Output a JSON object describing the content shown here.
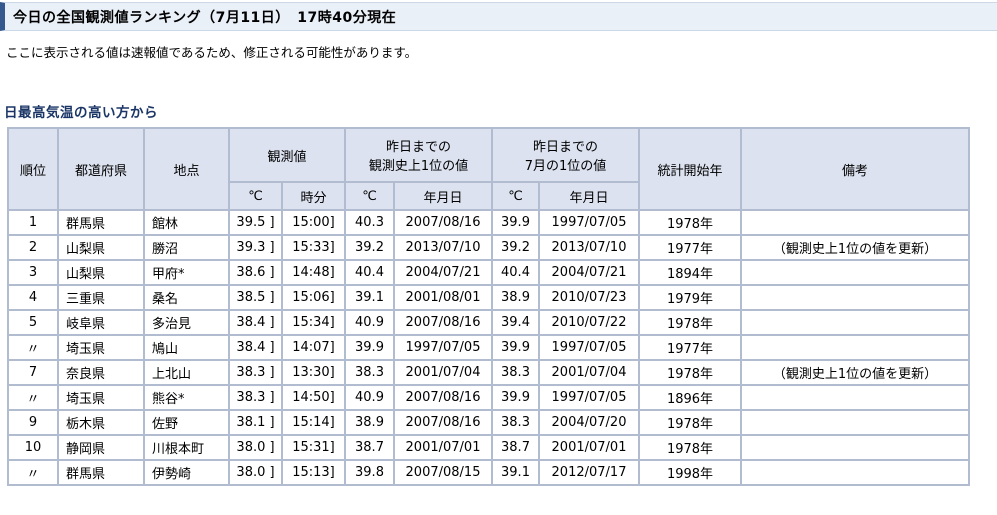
{
  "title_bar": {
    "text": "今日の全国観測値ランキング（7月11日）　17時40分現在"
  },
  "notice": "ここに表示される値は速報値であるため、修正される可能性があります。",
  "section": {
    "heading": "日最高気温の高い方から"
  },
  "colors": {
    "title_accent": "#35588e",
    "title_bg": "#eaf0f8",
    "heading_text": "#1b3666",
    "header_cell_bg": "#dce2ef",
    "inner_border": "#b2bcd0",
    "outer_border": "#8b97ad"
  },
  "table": {
    "headers": {
      "rank": "順位",
      "prefecture": "都道府県",
      "station": "地点",
      "observed": "観測値",
      "record_all_line1": "昨日までの",
      "record_all_line2": "観測史上1位の値",
      "record_july_line1": "昨日までの",
      "record_july_line2": "7月の1位の値",
      "stats_start": "統計開始年",
      "remarks": "備考",
      "temp_unit": "℃",
      "time": "時分",
      "date": "年月日"
    },
    "rows": [
      {
        "rank": "1",
        "pref": "群馬県",
        "station": "館林",
        "temp": "39.5 ]",
        "time": "15:00]",
        "rec_temp": "40.3",
        "rec_date": "2007/08/16",
        "jul_temp": "39.9",
        "jul_date": "1997/07/05",
        "since": "1978年",
        "remarks": ""
      },
      {
        "rank": "2",
        "pref": "山梨県",
        "station": "勝沼",
        "temp": "39.3 ]",
        "time": "15:33]",
        "rec_temp": "39.2",
        "rec_date": "2013/07/10",
        "jul_temp": "39.2",
        "jul_date": "2013/07/10",
        "since": "1977年",
        "remarks": "（観測史上1位の値を更新）"
      },
      {
        "rank": "3",
        "pref": "山梨県",
        "station": "甲府*",
        "temp": "38.6 ]",
        "time": "14:48]",
        "rec_temp": "40.4",
        "rec_date": "2004/07/21",
        "jul_temp": "40.4",
        "jul_date": "2004/07/21",
        "since": "1894年",
        "remarks": ""
      },
      {
        "rank": "4",
        "pref": "三重県",
        "station": "桑名",
        "temp": "38.5 ]",
        "time": "15:06]",
        "rec_temp": "39.1",
        "rec_date": "2001/08/01",
        "jul_temp": "38.9",
        "jul_date": "2010/07/23",
        "since": "1979年",
        "remarks": ""
      },
      {
        "rank": "5",
        "pref": "岐阜県",
        "station": "多治見",
        "temp": "38.4 ]",
        "time": "15:34]",
        "rec_temp": "40.9",
        "rec_date": "2007/08/16",
        "jul_temp": "39.4",
        "jul_date": "2010/07/22",
        "since": "1978年",
        "remarks": ""
      },
      {
        "rank": "〃",
        "pref": "埼玉県",
        "station": "鳩山",
        "temp": "38.4 ]",
        "time": "14:07]",
        "rec_temp": "39.9",
        "rec_date": "1997/07/05",
        "jul_temp": "39.9",
        "jul_date": "1997/07/05",
        "since": "1977年",
        "remarks": ""
      },
      {
        "rank": "7",
        "pref": "奈良県",
        "station": "上北山",
        "temp": "38.3 ]",
        "time": "13:30]",
        "rec_temp": "38.3",
        "rec_date": "2001/07/04",
        "jul_temp": "38.3",
        "jul_date": "2001/07/04",
        "since": "1978年",
        "remarks": "（観測史上1位の値を更新）"
      },
      {
        "rank": "〃",
        "pref": "埼玉県",
        "station": "熊谷*",
        "temp": "38.3 ]",
        "time": "14:50]",
        "rec_temp": "40.9",
        "rec_date": "2007/08/16",
        "jul_temp": "39.9",
        "jul_date": "1997/07/05",
        "since": "1896年",
        "remarks": ""
      },
      {
        "rank": "9",
        "pref": "栃木県",
        "station": "佐野",
        "temp": "38.1 ]",
        "time": "15:14]",
        "rec_temp": "38.9",
        "rec_date": "2007/08/16",
        "jul_temp": "38.3",
        "jul_date": "2004/07/20",
        "since": "1978年",
        "remarks": ""
      },
      {
        "rank": "10",
        "pref": "静岡県",
        "station": "川根本町",
        "temp": "38.0 ]",
        "time": "15:31]",
        "rec_temp": "38.7",
        "rec_date": "2001/07/01",
        "jul_temp": "38.7",
        "jul_date": "2001/07/01",
        "since": "1978年",
        "remarks": ""
      },
      {
        "rank": "〃",
        "pref": "群馬県",
        "station": "伊勢崎",
        "temp": "38.0 ]",
        "time": "15:13]",
        "rec_temp": "39.8",
        "rec_date": "2007/08/15",
        "jul_temp": "39.1",
        "jul_date": "2012/07/17",
        "since": "1998年",
        "remarks": ""
      }
    ]
  }
}
